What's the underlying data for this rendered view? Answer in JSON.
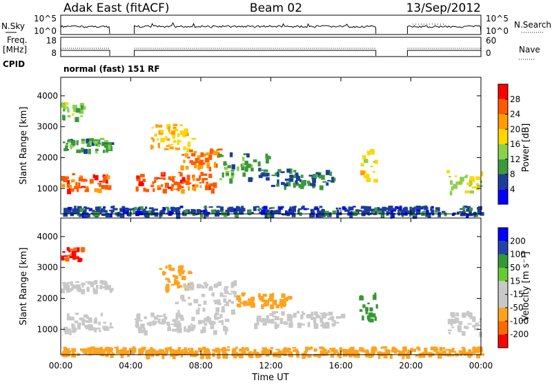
{
  "header": {
    "station": "Adak East (fitACF)",
    "beam": "Beam 02",
    "date": "13/Sep/2012"
  },
  "left_labels": {
    "nsky": "N.Sky",
    "freq_line1": "Freq.",
    "freq_line2": "[MHz]",
    "cpid": "CPID"
  },
  "right_labels": {
    "nsearch": "N.Search",
    "nave": "Nave"
  },
  "cpid_text": "normal (fast) 151 RF",
  "time_axis": {
    "label": "Time UT",
    "ticks": [
      "00:00",
      "04:00",
      "08:00",
      "12:00",
      "16:00",
      "20:00",
      "00:00"
    ]
  },
  "colors": {
    "power": [
      "#0000ff",
      "#1a3e99",
      "#3b9a3b",
      "#8ad24a",
      "#ffd700",
      "#ff9d00",
      "#ff5a00",
      "#ff0000"
    ],
    "velocity": [
      "#ff0000",
      "#ff6a00",
      "#ffa21e",
      "#c8c8c8",
      "#c8c8c8",
      "#66cc33",
      "#339933",
      "#2244aa",
      "#0000ff"
    ]
  },
  "chart_data": [
    {
      "type": "line",
      "panel": "noise",
      "left_axis": {
        "label": "N.Sky",
        "ticks": [
          "10^5",
          "10^0"
        ],
        "scale": "log"
      },
      "right_axis": {
        "label": "N.Search",
        "ticks": [
          "10^5",
          "10^0"
        ],
        "scale": "log"
      },
      "x_range": [
        0,
        24
      ],
      "coverage_hours": [
        [
          0,
          2.8
        ],
        [
          4.2,
          18.0
        ],
        [
          19.8,
          24
        ]
      ]
    },
    {
      "type": "line",
      "panel": "frequency",
      "left_axis": {
        "label": "Freq. [MHz]",
        "ticks": [
          "18",
          "8"
        ],
        "ylim": [
          8,
          18
        ]
      },
      "right_axis": {
        "label": "Nave",
        "ticks": [
          "60",
          "0"
        ],
        "ylim": [
          0,
          60
        ]
      },
      "x_range": [
        0,
        24
      ]
    },
    {
      "type": "heatmap",
      "panel": "power",
      "ylabel": "Slant Range [km]",
      "yticks": [
        "1000",
        "2000",
        "3000",
        "4000"
      ],
      "ylim": [
        180,
        4600
      ],
      "xlim": [
        0,
        24
      ],
      "xlabel": "Time UT",
      "colorbar": {
        "label": "Power [dB]",
        "ticks": [
          "4",
          "8",
          "12",
          "16",
          "20",
          "24",
          "28"
        ],
        "range": [
          0,
          30
        ]
      },
      "bands": [
        {
          "t0": 0.0,
          "t1": 2.8,
          "r0": 950,
          "r1": 1500,
          "value": 26
        },
        {
          "t0": 0.0,
          "t1": 2.8,
          "r0": 2250,
          "r1": 2650,
          "value": 10
        },
        {
          "t0": 0.0,
          "t1": 1.2,
          "r0": 3300,
          "r1": 3800,
          "value": 14
        },
        {
          "t0": 4.2,
          "t1": 8.7,
          "r0": 950,
          "r1": 1550,
          "value": 26
        },
        {
          "t0": 5.0,
          "t1": 7.5,
          "r0": 2300,
          "r1": 3100,
          "value": 20
        },
        {
          "t0": 6.8,
          "t1": 9.0,
          "r0": 1700,
          "r1": 2300,
          "value": 24
        },
        {
          "t0": 9.0,
          "t1": 12.0,
          "r0": 1300,
          "r1": 2200,
          "value": 10
        },
        {
          "t0": 12.0,
          "t1": 15.5,
          "r0": 1100,
          "r1": 1650,
          "value": 8
        },
        {
          "t0": 17.0,
          "t1": 18.0,
          "r0": 1300,
          "r1": 2300,
          "value": 18
        },
        {
          "t0": 22.0,
          "t1": 24.0,
          "r0": 900,
          "r1": 1600,
          "value": 16
        },
        {
          "t0": 0.0,
          "t1": 24.0,
          "r0": 180,
          "r1": 450,
          "value": 6
        }
      ]
    },
    {
      "type": "heatmap",
      "panel": "velocity",
      "ylabel": "Slant Range [km]",
      "yticks": [
        "1000",
        "2000",
        "3000",
        "4000"
      ],
      "ylim": [
        180,
        4600
      ],
      "xlim": [
        0,
        24
      ],
      "xlabel": "Time UT",
      "colorbar": {
        "label": "Velocity [m s⁻¹]",
        "ticks": [
          "-200",
          "-100",
          "-50",
          "-15",
          "15",
          "50",
          "100",
          "200"
        ],
        "range": [
          -250,
          250
        ]
      },
      "bands": [
        {
          "t0": 0.0,
          "t1": 2.8,
          "r0": 950,
          "r1": 1550,
          "value": 0
        },
        {
          "t0": 0.0,
          "t1": 2.8,
          "r0": 2300,
          "r1": 2600,
          "value": 0
        },
        {
          "t0": 0.0,
          "t1": 1.3,
          "r0": 3300,
          "r1": 3700,
          "value": -200
        },
        {
          "t0": 4.2,
          "t1": 9.5,
          "r0": 950,
          "r1": 1550,
          "value": 0
        },
        {
          "t0": 5.5,
          "t1": 7.5,
          "r0": 2300,
          "r1": 3100,
          "value": -60
        },
        {
          "t0": 6.5,
          "t1": 10.0,
          "r0": 1600,
          "r1": 2600,
          "value": 0
        },
        {
          "t0": 10.0,
          "t1": 13.0,
          "r0": 1800,
          "r1": 2200,
          "value": -60
        },
        {
          "t0": 11.0,
          "t1": 16.0,
          "r0": 1150,
          "r1": 1600,
          "value": 0
        },
        {
          "t0": 17.0,
          "t1": 18.0,
          "r0": 1300,
          "r1": 2300,
          "value": 60
        },
        {
          "t0": 22.0,
          "t1": 24.0,
          "r0": 900,
          "r1": 1600,
          "value": 0
        },
        {
          "t0": 0.0,
          "t1": 24.0,
          "r0": 180,
          "r1": 450,
          "value": -60
        }
      ]
    }
  ]
}
